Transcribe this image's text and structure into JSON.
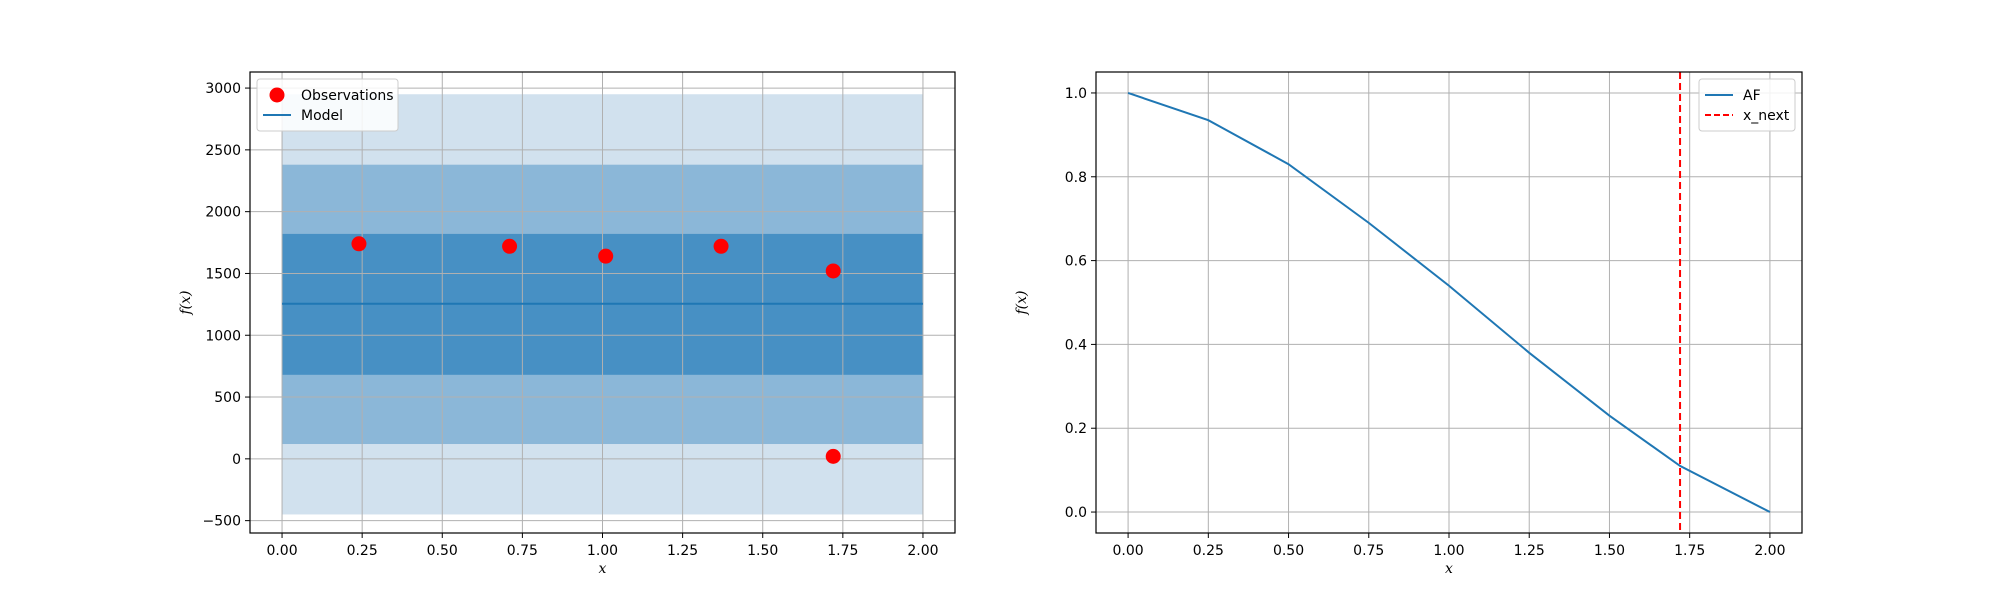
{
  "chart_data": [
    {
      "type": "scatter",
      "xlabel": "x",
      "ylabel": "f(x)",
      "xlim": [
        -0.1,
        2.1
      ],
      "ylim": [
        -600,
        3130
      ],
      "xticks": [
        "0.00",
        "0.25",
        "0.50",
        "0.75",
        "1.00",
        "1.25",
        "1.50",
        "1.75",
        "2.00"
      ],
      "yticks": [
        "−500",
        "0",
        "500",
        "1000",
        "1500",
        "2000",
        "2500",
        "3000"
      ],
      "grid": true,
      "legend_position": "top-left",
      "bands": [
        {
          "x": [
            0,
            2
          ],
          "low": -450,
          "high": 2950,
          "color": "#d1e1ee"
        },
        {
          "x": [
            0,
            2
          ],
          "low": 120,
          "high": 2380,
          "color": "#8bb7d8"
        },
        {
          "x": [
            0,
            2
          ],
          "low": 680,
          "high": 1820,
          "color": "#4790c4"
        }
      ],
      "series": [
        {
          "name": "Observations",
          "kind": "scatter",
          "color": "#ff0000",
          "points": [
            [
              0.24,
              1740
            ],
            [
              0.71,
              1720
            ],
            [
              1.01,
              1640
            ],
            [
              1.37,
              1720
            ],
            [
              1.72,
              1520
            ],
            [
              1.72,
              20
            ]
          ]
        },
        {
          "name": "Model",
          "kind": "line",
          "color": "#1f77b4",
          "points": [
            [
              0,
              1255
            ],
            [
              2,
              1255
            ]
          ]
        }
      ]
    },
    {
      "type": "line",
      "xlabel": "x",
      "ylabel": "f(x)",
      "xlim": [
        -0.1,
        2.1
      ],
      "ylim": [
        -0.05,
        1.05
      ],
      "xticks": [
        "0.00",
        "0.25",
        "0.50",
        "0.75",
        "1.00",
        "1.25",
        "1.50",
        "1.75",
        "2.00"
      ],
      "yticks": [
        "0.0",
        "0.2",
        "0.4",
        "0.6",
        "0.8",
        "1.0"
      ],
      "grid": true,
      "legend_position": "top-right",
      "series": [
        {
          "name": "AF",
          "kind": "line",
          "color": "#1f77b4",
          "points": [
            [
              0,
              1.0
            ],
            [
              0.25,
              0.935
            ],
            [
              0.5,
              0.83
            ],
            [
              0.75,
              0.69
            ],
            [
              1.0,
              0.54
            ],
            [
              1.25,
              0.38
            ],
            [
              1.5,
              0.23
            ],
            [
              1.72,
              0.11
            ],
            [
              2.0,
              0.0
            ]
          ]
        },
        {
          "name": "x_next",
          "kind": "vline",
          "color": "#ff0000",
          "x": 1.72
        }
      ]
    }
  ]
}
